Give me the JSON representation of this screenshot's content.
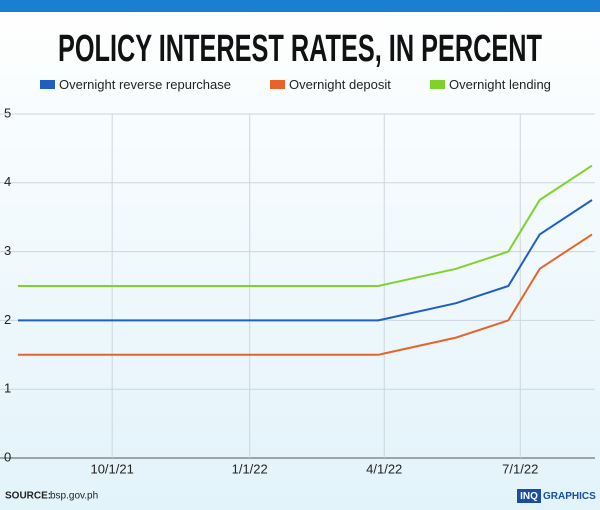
{
  "chart_data": {
    "type": "line",
    "title": "POLICY INTEREST RATES, IN PERCENT",
    "x": [
      "7/30/21",
      "3/28/22",
      "5/19/22",
      "6/23/22",
      "7/14/22",
      "8/18/22"
    ],
    "series": [
      {
        "name": "Overnight reverse repurchase",
        "color": "#1f5fc0",
        "values": [
          2,
          2,
          2.25,
          2.5,
          3.25,
          3.75
        ]
      },
      {
        "name": "Overnight deposit",
        "color": "#e8632a",
        "values": [
          1.5,
          1.5,
          1.75,
          2,
          2.75,
          3.25
        ]
      },
      {
        "name": "Overnight lending",
        "color": "#7fd22a",
        "values": [
          2.5,
          2.5,
          2.75,
          3,
          3.75,
          4.25
        ]
      }
    ],
    "xlim": [
      "7/28/21",
      "8/20/22"
    ],
    "xticks": [
      "10/1/21",
      "1/1/22",
      "4/1/22",
      "7/1/22"
    ],
    "ylim": [
      0,
      5
    ],
    "yticks": [
      0,
      1,
      2,
      3,
      4,
      5
    ],
    "grid": true,
    "source_label": "SOURCE:",
    "source": "bsp.gov.ph",
    "brand": "INQ",
    "brand_suffix": "GRAPHICS"
  }
}
